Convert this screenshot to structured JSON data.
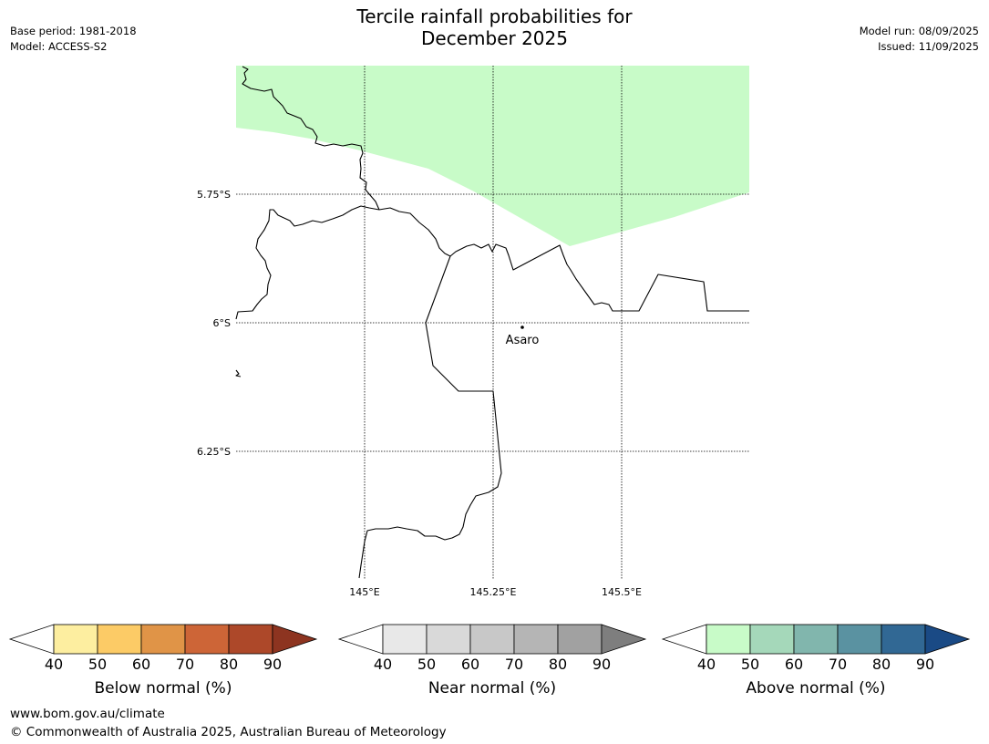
{
  "title": {
    "line1": "Tercile rainfall probabilities for",
    "line2": "December 2025"
  },
  "meta_left": {
    "base_period": "Base period: 1981-2018",
    "model": "Model: ACCESS-S2"
  },
  "meta_right": {
    "model_run": "Model run: 08/09/2025",
    "issued": "Issued: 11/09/2025"
  },
  "map": {
    "lat_labels": [
      "5.75°S",
      "6°S",
      "6.25°S"
    ],
    "lon_labels": [
      "145°E",
      "145.25°E",
      "145.5°E"
    ],
    "place_name": "Asaro",
    "shaded_category": "Above normal",
    "shaded_band": "40-50",
    "shade_color": "#c8fbc8",
    "coastline_color": "#000000"
  },
  "colorbars": [
    {
      "name": "below",
      "label": "Below normal (%)",
      "ticks": [
        "40",
        "50",
        "60",
        "70",
        "80",
        "90"
      ],
      "colors": [
        "#fdeea0",
        "#fccb66",
        "#e09447",
        "#cd6537",
        "#ad4829"
      ],
      "over_color": "#8d3420"
    },
    {
      "name": "near",
      "label": "Near normal (%)",
      "ticks": [
        "40",
        "50",
        "60",
        "70",
        "80",
        "90"
      ],
      "colors": [
        "#e8e8e8",
        "#d9d9d9",
        "#c8c8c8",
        "#b5b5b5",
        "#a1a1a1"
      ],
      "over_color": "#7e7e7e"
    },
    {
      "name": "above",
      "label": "Above normal (%)",
      "ticks": [
        "40",
        "50",
        "60",
        "70",
        "80",
        "90"
      ],
      "colors": [
        "#c8fbc8",
        "#a5d8ba",
        "#81b6ad",
        "#5a92a1",
        "#316894"
      ],
      "over_color": "#1a4a85"
    }
  ],
  "footer": {
    "url": "www.bom.gov.au/climate",
    "copyright": "© Commonwealth of Australia 2025, Australian Bureau of Meteorology"
  }
}
